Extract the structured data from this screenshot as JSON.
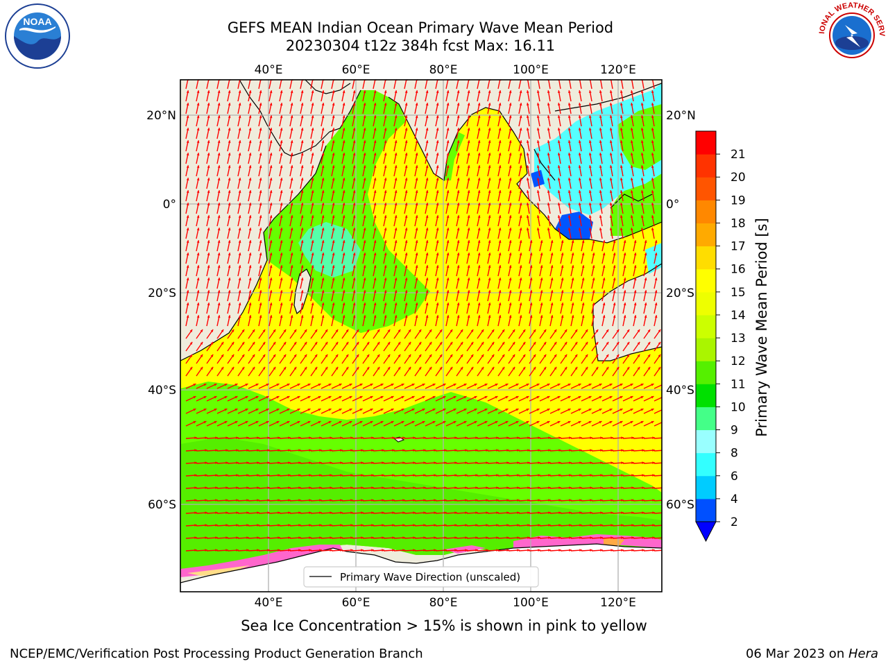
{
  "header": {
    "title": "GEFS MEAN Indian Ocean Primary Wave Mean Period",
    "subtitle": "20230304 t12z 384h fcst   Max: 16.11"
  },
  "axes": {
    "top_lon_labels": [
      "40°E",
      "60°E",
      "80°E",
      "100°E",
      "120°E"
    ],
    "bottom_lon_labels": [
      "40°E",
      "60°E",
      "80°E",
      "100°E",
      "120°E"
    ],
    "lat_labels": [
      "20°N",
      "0°",
      "20°S",
      "40°S",
      "60°S"
    ]
  },
  "legend": {
    "label": "Primary Wave Direction (unscaled)"
  },
  "colorbar": {
    "label": "Primary Wave Mean Period [s]",
    "ticks": [
      "21",
      "20",
      "19",
      "18",
      "17",
      "16",
      "15",
      "14",
      "13",
      "12",
      "11",
      "10",
      "9",
      "8",
      "6",
      "4",
      "2"
    ],
    "colors": [
      "#0050ff",
      "#00ccff",
      "#33ffff",
      "#99ffff",
      "#44ff88",
      "#00e000",
      "#55f000",
      "#aaf500",
      "#ccff00",
      "#eeff00",
      "#ffff00",
      "#ffdd00",
      "#ffaa00",
      "#ff8800",
      "#ff5500",
      "#ff3300",
      "#ff0000"
    ]
  },
  "note": "Sea Ice Concentration > 15% is shown in pink to yellow",
  "footer": {
    "left": "NCEP/EMC/Verification Post Processing Product Generation Branch",
    "right_prefix": "06 Mar 2023 on ",
    "right_italic": "Hera"
  },
  "logos": {
    "left": "NOAA",
    "right": "NATIONAL WEATHER SERVICE"
  },
  "colors": {
    "land": "#efecdc",
    "arrow": "#ff0000",
    "ocean_yellow": "#ffff00",
    "ocean_green": "#66ff00",
    "ocean_cyan": "#55ffff",
    "ocean_blue": "#0055ff"
  }
}
